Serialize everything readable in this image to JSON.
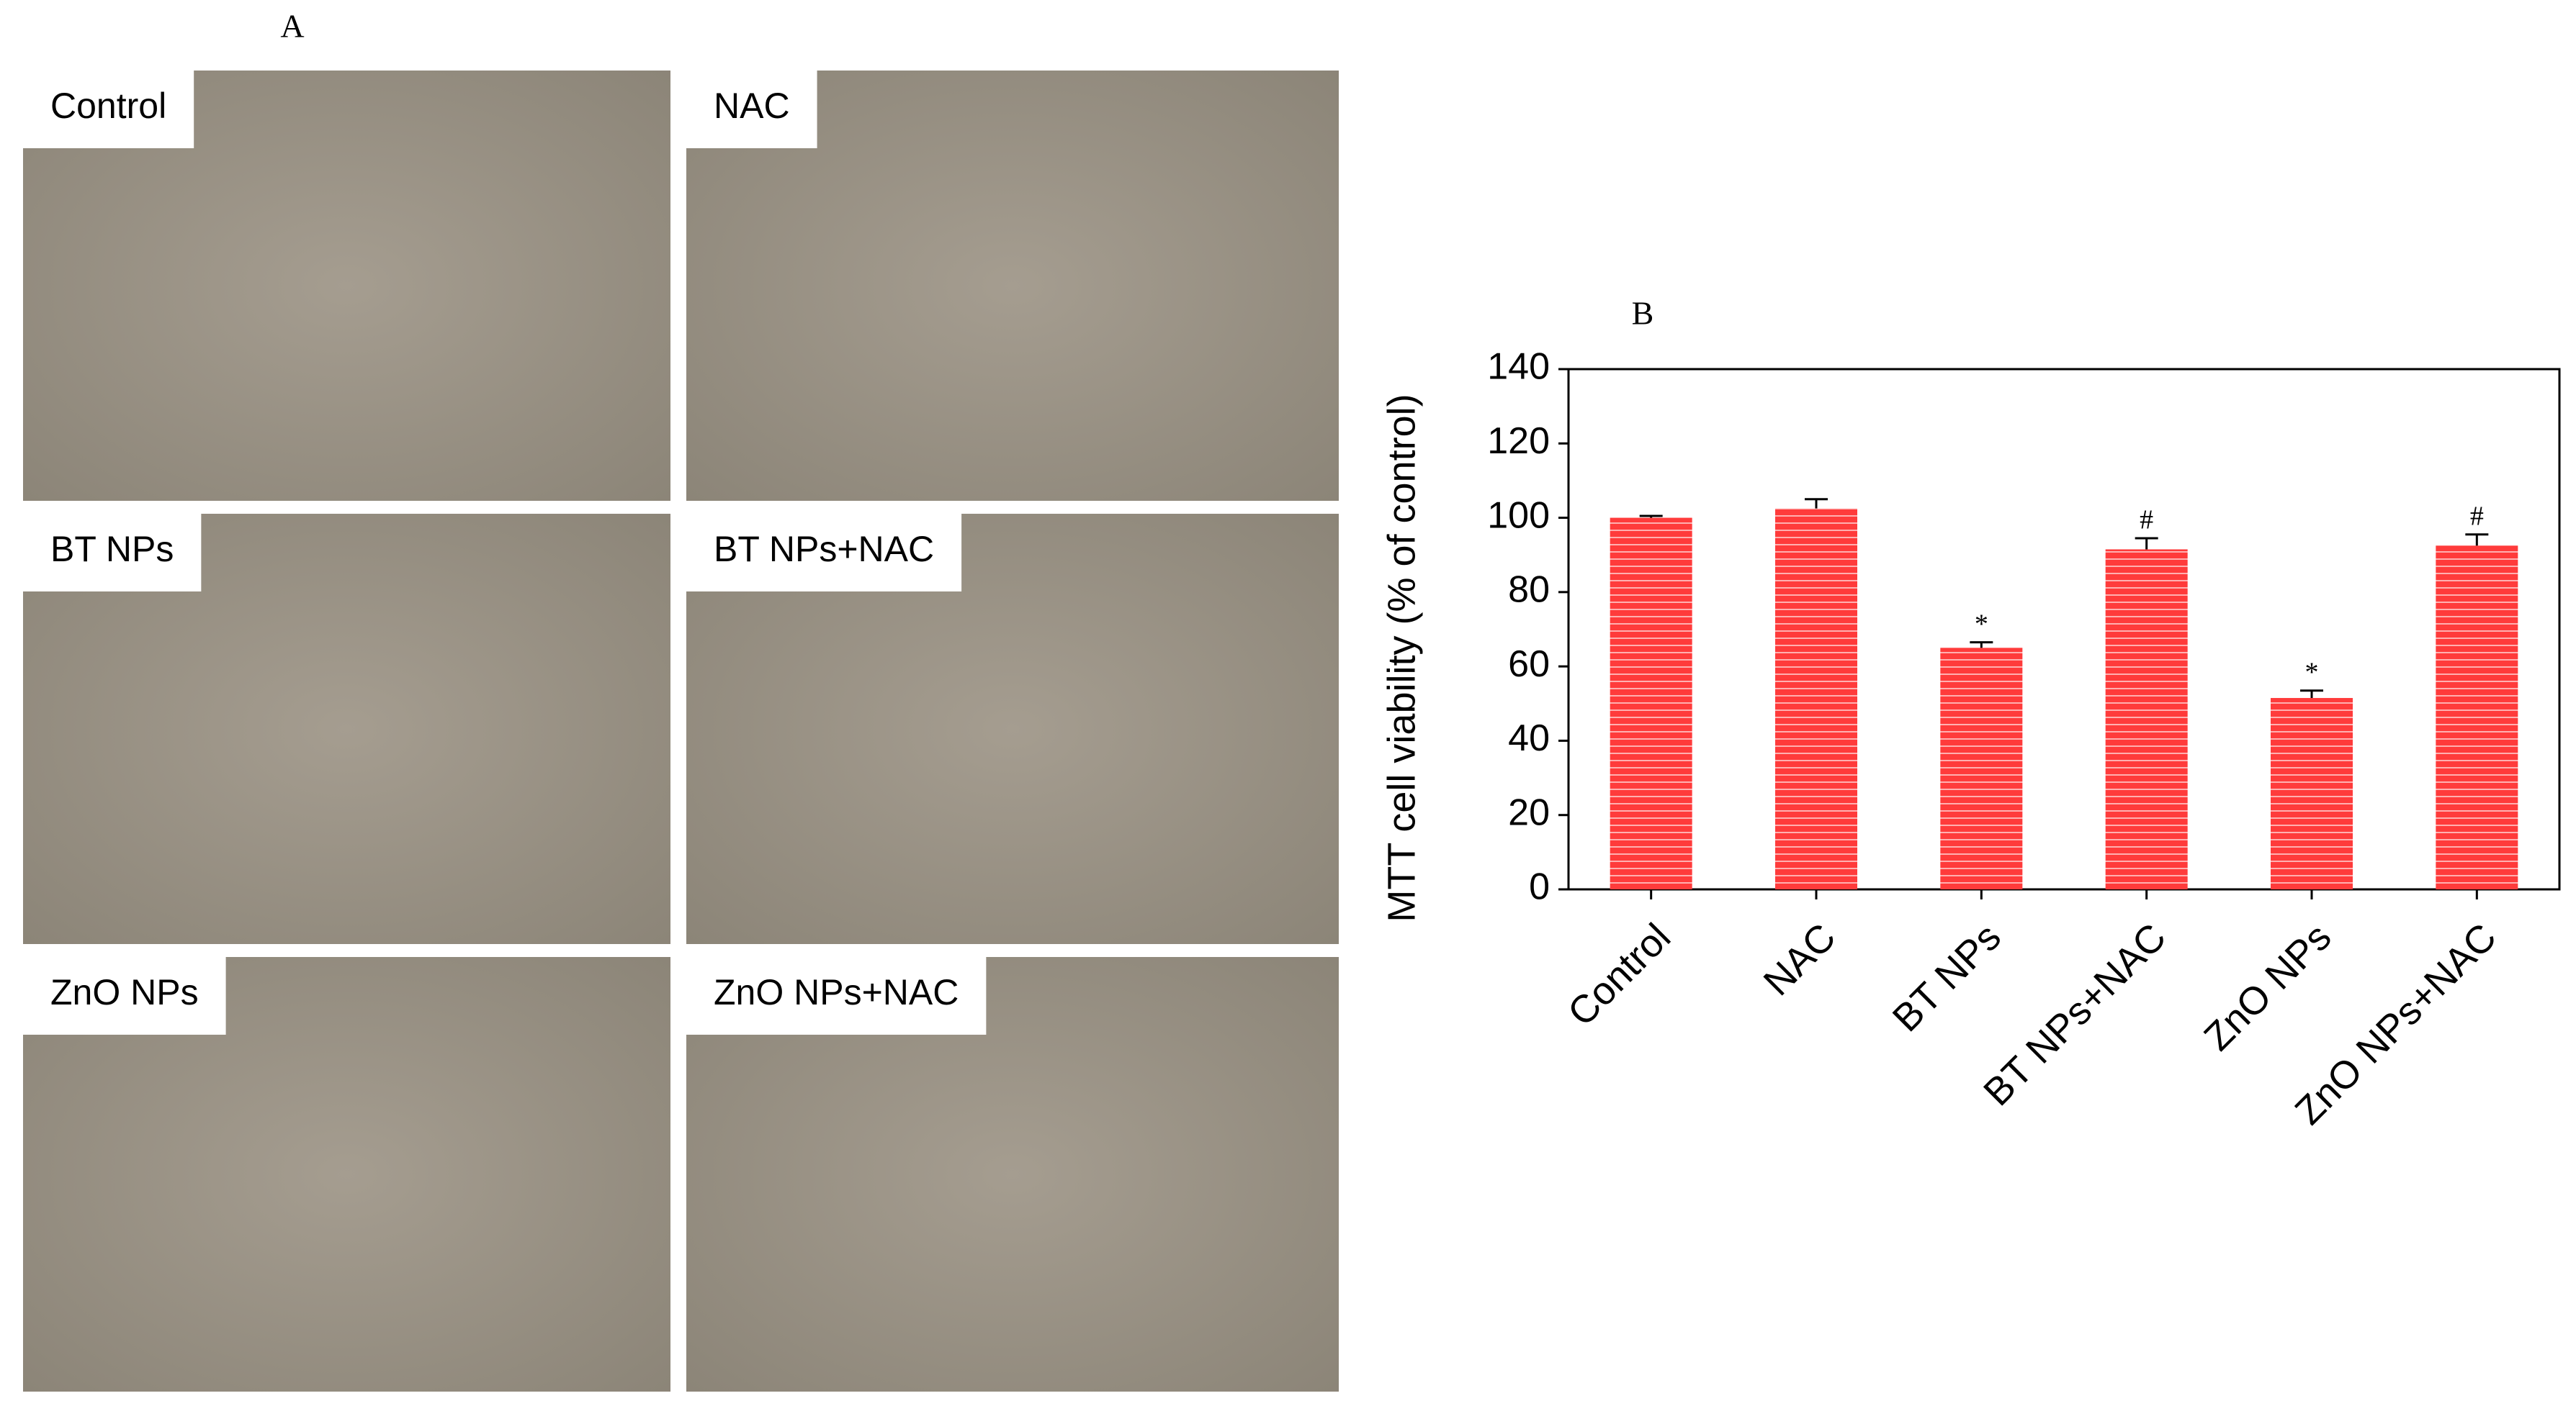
{
  "panel_a": {
    "label": "A",
    "images": [
      {
        "label": "Control"
      },
      {
        "label": "NAC"
      },
      {
        "label": "BT NPs"
      },
      {
        "label": "BT NPs+NAC"
      },
      {
        "label": "ZnO NPs"
      },
      {
        "label": "ZnO NPs+NAC"
      }
    ]
  },
  "chart_data": {
    "type": "bar",
    "panel_label": "B",
    "ylabel": "MTT cell viability (% of control)",
    "categories": [
      "Control",
      "NAC",
      "BT NPs",
      "BT NPs+NAC",
      "ZnO NPs",
      "ZnO NPs+NAC"
    ],
    "values": [
      100,
      102.5,
      65,
      91.5,
      51.5,
      92.5
    ],
    "errors": [
      0.5,
      2.5,
      1.5,
      3,
      2,
      3
    ],
    "annotations": [
      null,
      null,
      "*",
      "#",
      "*",
      "#"
    ],
    "color": "#ff3b3b",
    "ylim": [
      0,
      140
    ],
    "yticks": [
      0,
      20,
      40,
      60,
      80,
      100,
      120,
      140
    ]
  }
}
